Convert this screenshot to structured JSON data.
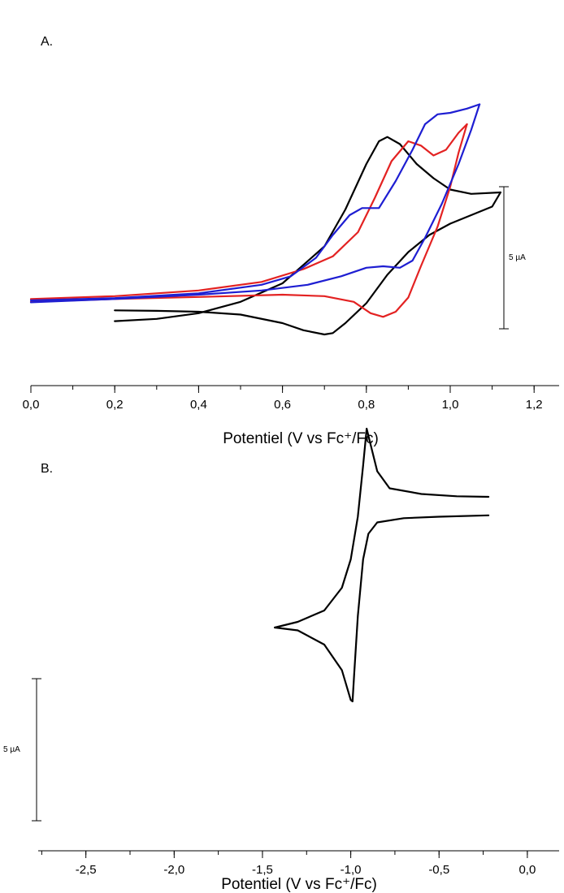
{
  "chart_data": [
    {
      "type": "line",
      "panel_label": "A.",
      "xlabel": "Potentiel (V vs Fc⁺/Fc)",
      "xlim": [
        0.0,
        1.25
      ],
      "xticks": [
        "0,0",
        "0,2",
        "0,4",
        "0,6",
        "0,8",
        "1,0",
        "1,2"
      ],
      "scale_bar": "5 µA",
      "series": [
        {
          "color": "#000000",
          "forward": [
            [
              0.2,
              0.27
            ],
            [
              0.3,
              0.35
            ],
            [
              0.4,
              0.55
            ],
            [
              0.5,
              0.95
            ],
            [
              0.6,
              1.6
            ],
            [
              0.7,
              2.9
            ],
            [
              0.75,
              4.2
            ],
            [
              0.8,
              5.8
            ],
            [
              0.83,
              6.6
            ],
            [
              0.85,
              6.75
            ],
            [
              0.88,
              6.5
            ],
            [
              0.92,
              5.8
            ],
            [
              0.96,
              5.3
            ],
            [
              1.0,
              4.9
            ],
            [
              1.05,
              4.75
            ],
            [
              1.12,
              4.8
            ]
          ],
          "reverse": [
            [
              1.12,
              4.8
            ],
            [
              1.1,
              4.3
            ],
            [
              1.05,
              4.0
            ],
            [
              1.0,
              3.7
            ],
            [
              0.95,
              3.3
            ],
            [
              0.9,
              2.7
            ],
            [
              0.85,
              1.9
            ],
            [
              0.8,
              0.9
            ],
            [
              0.75,
              0.2
            ],
            [
              0.72,
              -0.15
            ],
            [
              0.7,
              -0.2
            ],
            [
              0.65,
              -0.05
            ],
            [
              0.6,
              0.2
            ],
            [
              0.5,
              0.5
            ],
            [
              0.4,
              0.6
            ],
            [
              0.3,
              0.63
            ],
            [
              0.2,
              0.65
            ]
          ]
        },
        {
          "color": "#e32222",
          "forward": [
            [
              0.0,
              1.05
            ],
            [
              0.2,
              1.15
            ],
            [
              0.4,
              1.35
            ],
            [
              0.55,
              1.65
            ],
            [
              0.65,
              2.1
            ],
            [
              0.72,
              2.55
            ],
            [
              0.78,
              3.4
            ],
            [
              0.82,
              4.6
            ],
            [
              0.86,
              5.9
            ],
            [
              0.9,
              6.6
            ],
            [
              0.93,
              6.45
            ],
            [
              0.96,
              6.1
            ],
            [
              0.99,
              6.3
            ],
            [
              1.02,
              6.9
            ],
            [
              1.04,
              7.2
            ]
          ],
          "reverse": [
            [
              1.04,
              7.2
            ],
            [
              1.02,
              6.2
            ],
            [
              1.0,
              5.0
            ],
            [
              0.97,
              3.6
            ],
            [
              0.93,
              2.2
            ],
            [
              0.9,
              1.1
            ],
            [
              0.87,
              0.6
            ],
            [
              0.84,
              0.42
            ],
            [
              0.81,
              0.55
            ],
            [
              0.77,
              0.95
            ],
            [
              0.7,
              1.15
            ],
            [
              0.6,
              1.2
            ],
            [
              0.4,
              1.12
            ],
            [
              0.2,
              1.05
            ],
            [
              0.0,
              0.95
            ]
          ]
        },
        {
          "color": "#1e1ed2",
          "forward": [
            [
              0.0,
              1.0
            ],
            [
              0.2,
              1.08
            ],
            [
              0.4,
              1.25
            ],
            [
              0.55,
              1.55
            ],
            [
              0.62,
              1.85
            ],
            [
              0.68,
              2.5
            ],
            [
              0.72,
              3.3
            ],
            [
              0.76,
              4.0
            ],
            [
              0.79,
              4.25
            ],
            [
              0.83,
              4.25
            ],
            [
              0.87,
              5.2
            ],
            [
              0.91,
              6.3
            ],
            [
              0.94,
              7.2
            ],
            [
              0.97,
              7.55
            ],
            [
              1.0,
              7.6
            ],
            [
              1.04,
              7.75
            ],
            [
              1.07,
              7.9
            ]
          ],
          "reverse": [
            [
              1.07,
              7.9
            ],
            [
              1.05,
              7.0
            ],
            [
              1.02,
              5.8
            ],
            [
              0.98,
              4.4
            ],
            [
              0.94,
              3.2
            ],
            [
              0.91,
              2.4
            ],
            [
              0.88,
              2.15
            ],
            [
              0.84,
              2.2
            ],
            [
              0.8,
              2.15
            ],
            [
              0.74,
              1.85
            ],
            [
              0.66,
              1.55
            ],
            [
              0.55,
              1.35
            ],
            [
              0.4,
              1.2
            ],
            [
              0.2,
              1.05
            ],
            [
              0.0,
              0.93
            ]
          ]
        }
      ]
    },
    {
      "type": "line",
      "panel_label": "B.",
      "xlabel": "Potentiel (V vs Fc⁺/Fc)",
      "xlim": [
        -2.77,
        0.18
      ],
      "xticks": [
        "-2,5",
        "-2,0",
        "-1,5",
        "-1,0",
        "-0,5",
        "0,0"
      ],
      "scale_bar": "5 µA",
      "series": [
        {
          "color": "#000000",
          "forward": [
            [
              -0.22,
              3.05
            ],
            [
              -0.5,
              3.0
            ],
            [
              -0.7,
              2.95
            ],
            [
              -0.85,
              2.8
            ],
            [
              -0.9,
              2.4
            ],
            [
              -0.93,
              1.5
            ],
            [
              -0.96,
              -0.5
            ],
            [
              -0.98,
              -2.5
            ],
            [
              -0.99,
              -3.5
            ],
            [
              -1.0,
              -3.45
            ],
            [
              -1.05,
              -2.4
            ],
            [
              -1.15,
              -1.5
            ],
            [
              -1.3,
              -1.0
            ],
            [
              -1.43,
              -0.9
            ]
          ],
          "reverse": [
            [
              -1.43,
              -0.9
            ],
            [
              -1.3,
              -0.7
            ],
            [
              -1.15,
              -0.3
            ],
            [
              -1.05,
              0.5
            ],
            [
              -1.0,
              1.5
            ],
            [
              -0.96,
              3.0
            ],
            [
              -0.93,
              4.8
            ],
            [
              -0.91,
              6.1
            ],
            [
              -0.89,
              5.6
            ],
            [
              -0.85,
              4.6
            ],
            [
              -0.78,
              4.0
            ],
            [
              -0.6,
              3.8
            ],
            [
              -0.4,
              3.72
            ],
            [
              -0.22,
              3.7
            ]
          ]
        }
      ]
    }
  ]
}
